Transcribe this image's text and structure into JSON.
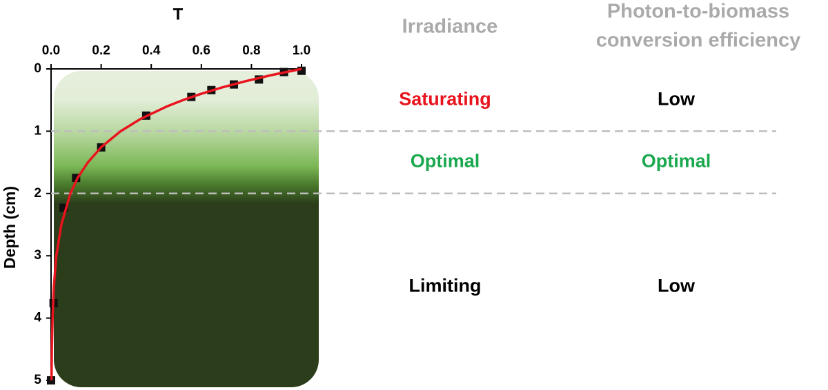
{
  "chart_data": {
    "type": "scatter",
    "xlabel": "T",
    "ylabel": "Depth (cm)",
    "x": [
      1.0,
      0.93,
      0.83,
      0.73,
      0.64,
      0.56,
      0.38,
      0.2,
      0.1,
      0.05,
      0.01,
      0.0
    ],
    "values": [
      0.03,
      0.05,
      0.17,
      0.25,
      0.34,
      0.45,
      0.75,
      1.26,
      1.75,
      2.23,
      3.76,
      5.0
    ],
    "color": "#111111",
    "fit": {
      "type": "line",
      "color": "#e8141e",
      "x": [
        1.0,
        0.88,
        0.774,
        0.681,
        0.599,
        0.527,
        0.464,
        0.359,
        0.278,
        0.202,
        0.147,
        0.106,
        0.077,
        0.041,
        0.021,
        0.011,
        0.006,
        0.003,
        0.002
      ],
      "values": [
        0,
        0.1,
        0.2,
        0.3,
        0.4,
        0.5,
        0.6,
        0.8,
        1.0,
        1.25,
        1.5,
        1.75,
        2.0,
        2.5,
        3.0,
        3.5,
        4.0,
        4.5,
        5.0
      ]
    },
    "xlim": [
      0,
      1
    ],
    "xticks": [
      {
        "value": 0,
        "label": "0.0"
      },
      0.2,
      0.4,
      0.6,
      0.8,
      {
        "value": 1,
        "label": "1.0"
      }
    ],
    "ylim": [
      0,
      5
    ],
    "yticks": [
      0,
      1,
      2,
      3,
      4,
      5
    ],
    "y_inverted": true,
    "zone_boundaries": [
      1,
      2
    ],
    "headers": {
      "irradiance": "Irradiance",
      "efficiency": [
        "Photon-to-biomass",
        "conversion efficiency"
      ],
      "color": "#aaaaaa"
    },
    "zones": [
      {
        "irradiance": "Saturating",
        "irradiance_color": "#e8141e",
        "efficiency": "Low",
        "efficiency_color": "#000000"
      },
      {
        "irradiance": "Optimal",
        "irradiance_color": "#1aa84e",
        "efficiency": "Optimal",
        "efficiency_color": "#1aa84e"
      },
      {
        "irradiance": "Limiting",
        "irradiance_color": "#000000",
        "efficiency": "Low",
        "efficiency_color": "#000000"
      }
    ]
  }
}
